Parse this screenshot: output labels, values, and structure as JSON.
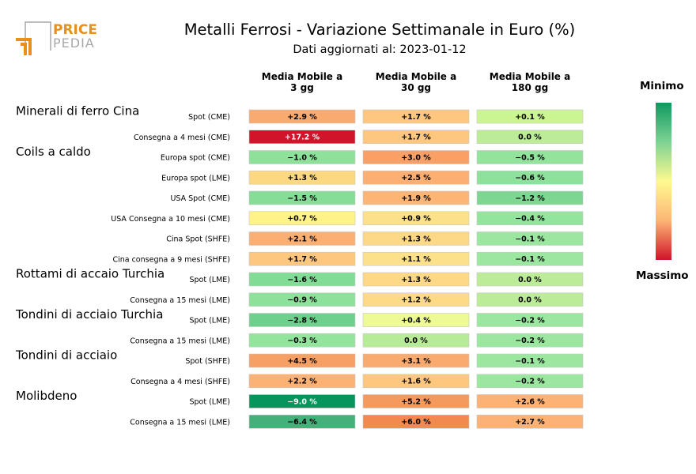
{
  "logo": {
    "line1": "PRICE",
    "line2": "PEDIA",
    "accent": "#e8901a",
    "grey": "#a8a8a8"
  },
  "title": "Metalli Ferrosi - Variazione Settimanale in Euro (%)",
  "subtitle": "Dati aggiornati al: 2023-01-12",
  "legend": {
    "top_label": "Minimo",
    "bottom_label": "Massimo"
  },
  "chart_data": {
    "type": "heatmap",
    "columns": [
      "Media Mobile a\n3 gg",
      "Media Mobile a\n30 gg",
      "Media Mobile a\n180 gg"
    ],
    "groups": [
      {
        "name": "Minerali di ferro Cina",
        "rows": [
          "Spot (CME)",
          "Consegna a 4 mesi (CME)"
        ]
      },
      {
        "name": "Coils a caldo",
        "rows": [
          "Europa spot (CME)",
          "Europa spot (LME)",
          "USA Spot (CME)",
          "USA Consegna a 10 mesi (CME)",
          "Cina Spot (SHFE)",
          "Cina consegna a 9 mesi (SHFE)"
        ]
      },
      {
        "name": "Rottami di accaio Turchia",
        "rows": [
          "Spot (LME)",
          "Consegna a 15 mesi (LME)"
        ]
      },
      {
        "name": "Tondini di acciaio Turchia",
        "rows": [
          "Spot (LME)",
          "Consegna a 15 mesi (LME)"
        ]
      },
      {
        "name": "Tondini di acciaio",
        "rows": [
          "Spot (SHFE)",
          "Consegna a 4 mesi (SHFE)"
        ]
      },
      {
        "name": "Molibdeno",
        "rows": [
          "Spot (LME)",
          "Consegna a 15 mesi (LME)"
        ]
      }
    ],
    "values": [
      [
        2.9,
        1.7,
        0.1
      ],
      [
        17.2,
        1.7,
        0.0
      ],
      [
        -1.0,
        3.0,
        -0.5
      ],
      [
        1.3,
        2.5,
        -0.6
      ],
      [
        -1.5,
        1.9,
        -1.2
      ],
      [
        0.7,
        0.9,
        -0.4
      ],
      [
        2.1,
        1.3,
        -0.1
      ],
      [
        1.7,
        1.1,
        -0.1
      ],
      [
        -1.6,
        1.3,
        0.0
      ],
      [
        -0.9,
        1.2,
        0.0
      ],
      [
        -2.8,
        0.4,
        -0.2
      ],
      [
        -0.3,
        0.0,
        -0.2
      ],
      [
        4.5,
        3.1,
        -0.1
      ],
      [
        2.2,
        1.6,
        -0.2
      ],
      [
        -9.0,
        5.2,
        2.6
      ],
      [
        -6.4,
        6.0,
        2.7
      ]
    ],
    "labels": [
      [
        "+2.9 %",
        "+1.7 %",
        "+0.1 %"
      ],
      [
        "+17.2 %",
        "+1.7 %",
        "0.0 %"
      ],
      [
        "−1.0 %",
        "+3.0 %",
        "−0.5 %"
      ],
      [
        "+1.3 %",
        "+2.5 %",
        "−0.6 %"
      ],
      [
        "−1.5 %",
        "+1.9 %",
        "−1.2 %"
      ],
      [
        "+0.7 %",
        "+0.9 %",
        "−0.4 %"
      ],
      [
        "+2.1 %",
        "+1.3 %",
        "−0.1 %"
      ],
      [
        "+1.7 %",
        "+1.1 %",
        "−0.1 %"
      ],
      [
        "−1.6 %",
        "+1.3 %",
        "0.0 %"
      ],
      [
        "−0.9 %",
        "+1.2 %",
        "0.0 %"
      ],
      [
        "−2.8 %",
        "+0.4 %",
        "−0.2 %"
      ],
      [
        "−0.3 %",
        "0.0 %",
        "−0.2 %"
      ],
      [
        "+4.5 %",
        "+3.1 %",
        "−0.1 %"
      ],
      [
        "+2.2 %",
        "+1.6 %",
        "−0.2 %"
      ],
      [
        "−9.0 %",
        "+5.2 %",
        "+2.6 %"
      ],
      [
        "−6.4 %",
        "+6.0 %",
        "+2.7 %"
      ]
    ],
    "colors": [
      [
        "#f9aa6f",
        "#fdc77f",
        "#caf591"
      ],
      [
        "#d0142a",
        "#fdc77f",
        "#bcec98"
      ],
      [
        "#8ee19b",
        "#f9a066",
        "#92e39c"
      ],
      [
        "#fcd883",
        "#fcaf72",
        "#8ee19b"
      ],
      [
        "#85dd97",
        "#fcb575",
        "#7dd793"
      ],
      [
        "#fef288",
        "#fde08a",
        "#93e49c"
      ],
      [
        "#fcaf72",
        "#fdd886",
        "#9be79f"
      ],
      [
        "#fdc77f",
        "#fde08a",
        "#9be79f"
      ],
      [
        "#82dc96",
        "#fdd886",
        "#bcec98"
      ],
      [
        "#8ee19b",
        "#fdda85",
        "#bcec98"
      ],
      [
        "#6fcf8c",
        "#eefa96",
        "#9be79f"
      ],
      [
        "#93e49c",
        "#b8eb97",
        "#9be79f"
      ],
      [
        "#f7a065",
        "#f9aa6f",
        "#9be79f"
      ],
      [
        "#fdb275",
        "#fdc77f",
        "#9be79f"
      ],
      [
        "#07955c",
        "#f59a5f",
        "#fdb275"
      ],
      [
        "#44b07a",
        "#f2894e",
        "#fdb275"
      ]
    ],
    "text_colors": [
      [
        "#000000",
        "#000000",
        "#000000"
      ],
      [
        "#ffffff",
        "#000000",
        "#000000"
      ],
      [
        "#000000",
        "#000000",
        "#000000"
      ],
      [
        "#000000",
        "#000000",
        "#000000"
      ],
      [
        "#000000",
        "#000000",
        "#000000"
      ],
      [
        "#000000",
        "#000000",
        "#000000"
      ],
      [
        "#000000",
        "#000000",
        "#000000"
      ],
      [
        "#000000",
        "#000000",
        "#000000"
      ],
      [
        "#000000",
        "#000000",
        "#000000"
      ],
      [
        "#000000",
        "#000000",
        "#000000"
      ],
      [
        "#000000",
        "#000000",
        "#000000"
      ],
      [
        "#000000",
        "#000000",
        "#000000"
      ],
      [
        "#000000",
        "#000000",
        "#000000"
      ],
      [
        "#000000",
        "#000000",
        "#000000"
      ],
      [
        "#ffffff",
        "#000000",
        "#000000"
      ],
      [
        "#000000",
        "#000000",
        "#000000"
      ]
    ],
    "colorbar": [
      "#0f9960",
      "#7dd393",
      "#fef990",
      "#fcb575",
      "#d0142a"
    ]
  }
}
